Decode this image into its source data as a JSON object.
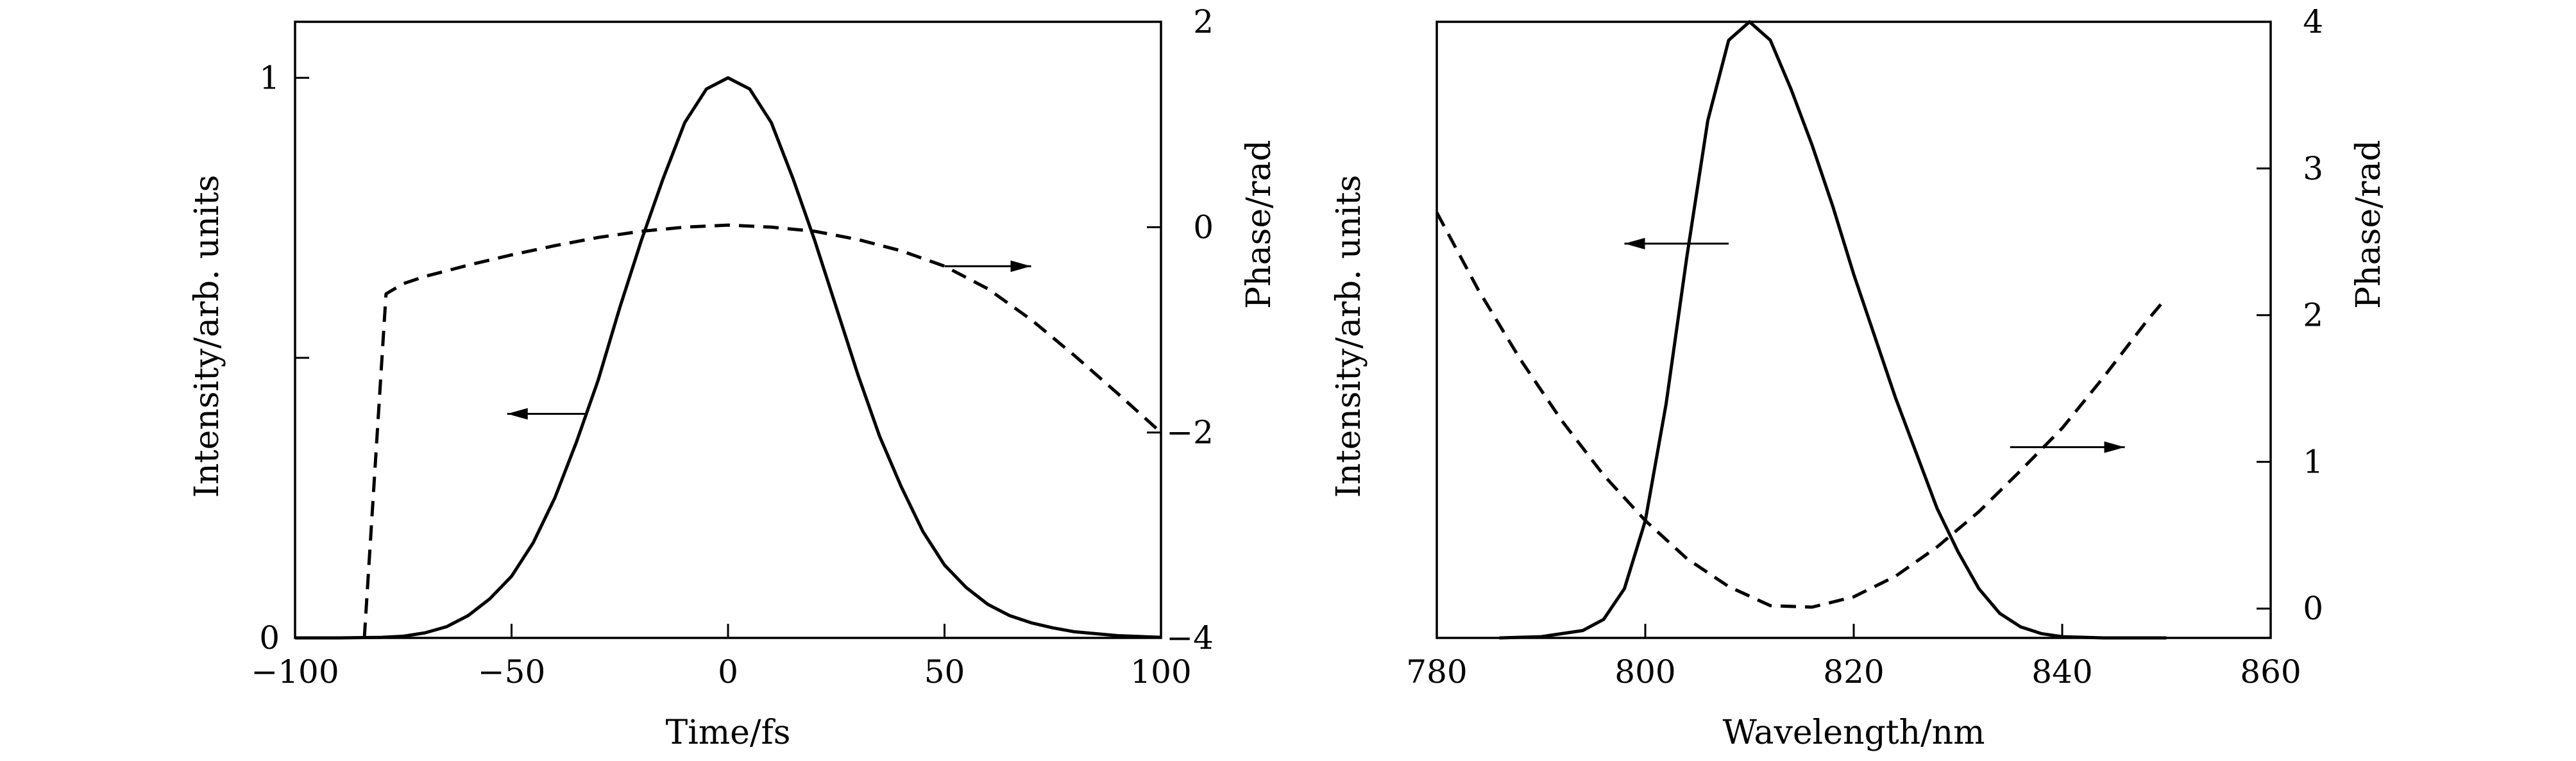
{
  "chart_data": [
    {
      "type": "line",
      "title": "",
      "xlabel": "Time/fs",
      "ylabel_left": "Intensity/arb. units",
      "ylabel_right": "Phase/rad",
      "xlim": [
        -100,
        100
      ],
      "ylim_left": [
        0,
        1.1
      ],
      "ylim_right": [
        -4,
        2
      ],
      "x_ticks": [
        -100,
        -50,
        0,
        50,
        100
      ],
      "x_tick_labels": [
        "−100",
        "−50",
        "0",
        "50",
        "100"
      ],
      "y_left_ticks": [
        0,
        0.5,
        1
      ],
      "y_left_tick_labels": [
        "0",
        "",
        "1"
      ],
      "y_right_ticks": [
        -4,
        -2,
        0,
        2
      ],
      "y_right_tick_labels": [
        "−4",
        "−2",
        "0",
        "2"
      ],
      "grid": false,
      "series": [
        {
          "axis": "left",
          "style": "solid",
          "color": "#000000",
          "x": [
            -100,
            -90,
            -80,
            -75,
            -70,
            -65,
            -60,
            -55,
            -50,
            -45,
            -40,
            -35,
            -30,
            -25,
            -20,
            -15,
            -10,
            -5,
            0,
            5,
            10,
            15,
            20,
            25,
            30,
            35,
            40,
            45,
            50,
            55,
            60,
            65,
            70,
            75,
            80,
            90,
            100
          ],
          "y": [
            0,
            0,
            0.001,
            0.003,
            0.009,
            0.02,
            0.04,
            0.07,
            0.11,
            0.17,
            0.25,
            0.35,
            0.46,
            0.59,
            0.71,
            0.82,
            0.92,
            0.98,
            1.0,
            0.98,
            0.92,
            0.82,
            0.71,
            0.59,
            0.47,
            0.36,
            0.27,
            0.19,
            0.13,
            0.09,
            0.06,
            0.04,
            0.027,
            0.018,
            0.011,
            0.004,
            0.001
          ]
        },
        {
          "axis": "right",
          "style": "dashed",
          "color": "#000000",
          "x": [
            -84,
            -79,
            -75,
            -70,
            -60,
            -50,
            -40,
            -30,
            -20,
            -10,
            0,
            10,
            20,
            30,
            40,
            50,
            60,
            70,
            80,
            90,
            100
          ],
          "y": [
            -4,
            -0.65,
            -0.55,
            -0.48,
            -0.37,
            -0.27,
            -0.18,
            -0.1,
            -0.04,
            0,
            0.02,
            0.0,
            -0.04,
            -0.12,
            -0.23,
            -0.38,
            -0.6,
            -0.9,
            -1.25,
            -1.62,
            -2.0
          ]
        }
      ],
      "annotations": [
        {
          "type": "arrow",
          "direction": "left",
          "target": "left axis",
          "x_from": -33,
          "x_to": -51,
          "y_axis": "left",
          "y": 0.4
        },
        {
          "type": "arrow",
          "direction": "right",
          "target": "right axis",
          "x_from": 50,
          "x_to": 70,
          "y_axis": "right",
          "y": -0.38
        }
      ]
    },
    {
      "type": "line",
      "title": "",
      "xlabel": "Wavelength/nm",
      "ylabel_left": "Intensity/arb. units",
      "ylabel_right": "Phase/rad",
      "xlim": [
        780,
        860
      ],
      "ylim_left": [
        0,
        1.0
      ],
      "ylim_right": [
        -0.2,
        4
      ],
      "x_ticks": [
        780,
        800,
        820,
        840,
        860
      ],
      "x_tick_labels": [
        "780",
        "800",
        "820",
        "840",
        "860"
      ],
      "y_left_ticks": [],
      "y_left_tick_labels": [],
      "y_right_ticks": [
        0,
        1,
        2,
        3,
        4
      ],
      "y_right_tick_labels": [
        "0",
        "1",
        "2",
        "3",
        "4"
      ],
      "grid": false,
      "series": [
        {
          "axis": "left",
          "style": "solid",
          "color": "#000000",
          "x": [
            786,
            790,
            794,
            796,
            798,
            800,
            802,
            804,
            806,
            808,
            810,
            812,
            814,
            816,
            818,
            820,
            822,
            824,
            826,
            828,
            830,
            832,
            834,
            836,
            838,
            840,
            844,
            850
          ],
          "y": [
            0,
            0.002,
            0.012,
            0.03,
            0.08,
            0.19,
            0.38,
            0.62,
            0.84,
            0.97,
            1.0,
            0.97,
            0.89,
            0.8,
            0.7,
            0.59,
            0.49,
            0.39,
            0.3,
            0.21,
            0.14,
            0.08,
            0.04,
            0.018,
            0.007,
            0.002,
            0.0,
            0.0
          ]
        },
        {
          "axis": "right",
          "style": "dashed",
          "color": "#000000",
          "x": [
            780,
            784,
            788,
            792,
            796,
            800,
            804,
            808,
            812,
            816,
            820,
            824,
            828,
            832,
            836,
            840,
            844,
            848,
            850
          ],
          "y": [
            2.7,
            2.17,
            1.7,
            1.28,
            0.91,
            0.6,
            0.34,
            0.15,
            0.02,
            0.01,
            0.08,
            0.22,
            0.42,
            0.66,
            0.94,
            1.23,
            1.58,
            1.95,
            2.12
          ]
        }
      ],
      "annotations": [
        {
          "type": "arrow",
          "direction": "left",
          "target": "left axis",
          "x_from": 808,
          "x_to": 798,
          "y_axis": "left",
          "y": 0.64
        },
        {
          "type": "arrow",
          "direction": "right",
          "target": "right axis",
          "x_from": 835,
          "x_to": 846,
          "y_axis": "right",
          "y": 1.1
        }
      ]
    }
  ]
}
